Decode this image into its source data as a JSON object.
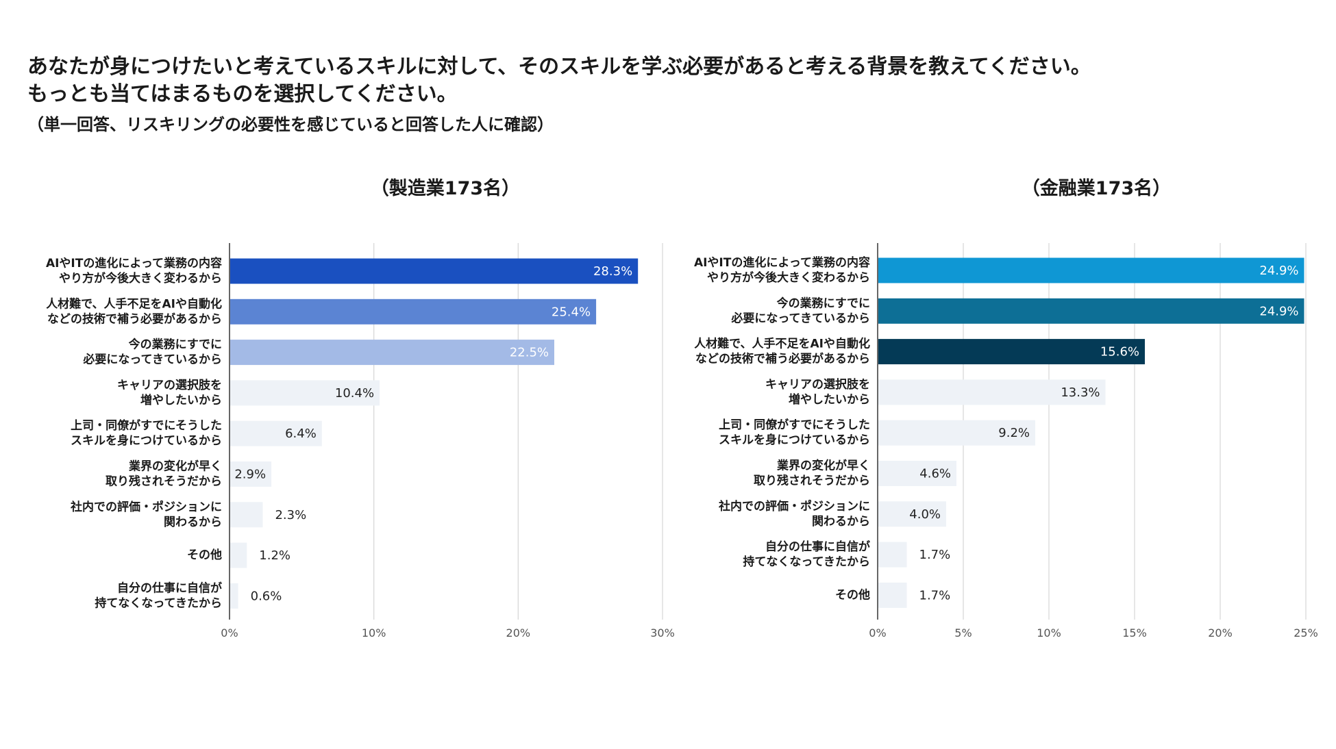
{
  "header": {
    "title_line1": "あなたが身につけたいと考えているスキルに対して、そのスキルを学ぶ必要があると考える背景を教えてください。",
    "title_line2": "もっとも当てはまるものを選択してください。",
    "subtitle": "（単一回答、リスキリングの必要性を感じていると回答した人に確認）"
  },
  "chart_data": [
    {
      "type": "bar",
      "orientation": "horizontal",
      "title": "（製造業173名）",
      "categories": [
        [
          "AIやITの進化によって業務の内容",
          "やり方が今後大きく変わるから"
        ],
        [
          "人材難で、人手不足をAIや自動化",
          "などの技術で補う必要があるから"
        ],
        [
          "今の業務にすでに",
          "必要になってきているから"
        ],
        [
          "キャリアの選択肢を",
          "増やしたいから"
        ],
        [
          "上司・同僚がすでにそうした",
          "スキルを身につけているから"
        ],
        [
          "業界の変化が早く",
          "取り残されそうだから"
        ],
        [
          "社内での評価・ポジションに",
          "関わるから"
        ],
        [
          "その他"
        ],
        [
          "自分の仕事に自信が",
          "持てなくなってきたから"
        ]
      ],
      "values": [
        28.3,
        25.4,
        22.5,
        10.4,
        6.4,
        2.9,
        2.3,
        1.2,
        0.6
      ],
      "value_labels": [
        "28.3%",
        "25.4%",
        "22.5%",
        "10.4%",
        "6.4%",
        "2.9%",
        "2.3%",
        "1.2%",
        "0.6%"
      ],
      "colors": [
        "#1a50c0",
        "#5b84d3",
        "#a3bae6",
        "#eef2f7",
        "#eef2f7",
        "#eef2f7",
        "#eef2f7",
        "#eef2f7",
        "#eef2f7"
      ],
      "xlim": [
        0,
        30
      ],
      "ticks": [
        0,
        10,
        20,
        30
      ],
      "tick_labels": [
        "0%",
        "10%",
        "20%",
        "30%"
      ],
      "grid": true
    },
    {
      "type": "bar",
      "orientation": "horizontal",
      "title": "（金融業173名）",
      "categories": [
        [
          "AIやITの進化によって業務の内容",
          "やり方が今後大きく変わるから"
        ],
        [
          "今の業務にすでに",
          "必要になってきているから"
        ],
        [
          "人材難で、人手不足をAIや自動化",
          "などの技術で補う必要があるから"
        ],
        [
          "キャリアの選択肢を",
          "増やしたいから"
        ],
        [
          "上司・同僚がすでにそうした",
          "スキルを身につけているから"
        ],
        [
          "業界の変化が早く",
          "取り残されそうだから"
        ],
        [
          "社内での評価・ポジションに",
          "関わるから"
        ],
        [
          "自分の仕事に自信が",
          "持てなくなってきたから"
        ],
        [
          "その他"
        ]
      ],
      "values": [
        24.9,
        24.9,
        15.6,
        13.3,
        9.2,
        4.6,
        4.0,
        1.7,
        1.7
      ],
      "value_labels": [
        "24.9%",
        "24.9%",
        "15.6%",
        "13.3%",
        "9.2%",
        "4.6%",
        "4.0%",
        "1.7%",
        "1.7%"
      ],
      "colors": [
        "#0f97d4",
        "#0d6f96",
        "#043a56",
        "#eef2f7",
        "#eef2f7",
        "#eef2f7",
        "#eef2f7",
        "#eef2f7",
        "#eef2f7"
      ],
      "xlim": [
        0,
        25
      ],
      "ticks": [
        0,
        5,
        10,
        15,
        20,
        25
      ],
      "tick_labels": [
        "0%",
        "5%",
        "10%",
        "15%",
        "20%",
        "25%"
      ],
      "grid": true
    }
  ]
}
